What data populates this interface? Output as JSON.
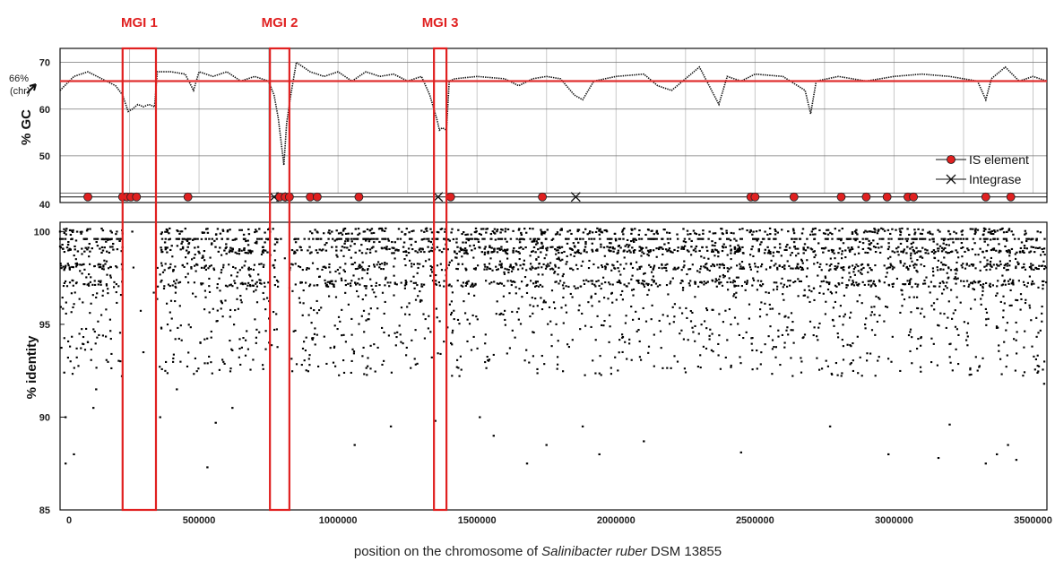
{
  "chart_data": [
    {
      "type": "line",
      "panel": "gc",
      "ylabel": "% GC",
      "ylim": [
        40,
        73
      ],
      "yticks": [
        "70",
        "60",
        "50",
        "40"
      ],
      "reference_line": {
        "value": 66,
        "label": "66%",
        "sublabel": "(chr)",
        "color": "#e03030"
      },
      "xlim": [
        0,
        3550000
      ],
      "grid": true,
      "series": [
        {
          "type": "line",
          "color": "#111111",
          "x": [
            0,
            50000,
            100000,
            150000,
            200000,
            225000,
            245000,
            260000,
            280000,
            300000,
            320000,
            340000,
            350000,
            400000,
            450000,
            480000,
            500000,
            550000,
            600000,
            650000,
            700000,
            750000,
            770000,
            785000,
            795000,
            805000,
            815000,
            830000,
            850000,
            900000,
            950000,
            1000000,
            1050000,
            1100000,
            1150000,
            1200000,
            1250000,
            1300000,
            1330000,
            1355000,
            1365000,
            1375000,
            1390000,
            1400000,
            1420000,
            1500000,
            1600000,
            1650000,
            1700000,
            1750000,
            1800000,
            1850000,
            1880000,
            1920000,
            2000000,
            2100000,
            2150000,
            2200000,
            2300000,
            2370000,
            2400000,
            2450000,
            2500000,
            2600000,
            2680000,
            2700000,
            2720000,
            2800000,
            2900000,
            3000000,
            3100000,
            3200000,
            3300000,
            3330000,
            3350000,
            3400000,
            3450000,
            3500000,
            3550000
          ],
          "y": [
            64,
            67,
            68,
            66.5,
            65,
            63,
            59.5,
            60,
            61,
            60.5,
            61,
            60.5,
            68,
            68,
            67.5,
            64,
            68,
            67,
            68,
            66,
            67,
            66,
            63,
            58,
            53,
            48,
            57,
            63,
            70,
            68,
            67,
            68,
            66,
            68,
            67,
            67.5,
            66,
            67,
            63,
            58,
            55.5,
            56,
            55.5,
            66,
            66.5,
            67,
            66.5,
            65,
            66.5,
            67,
            66.5,
            63,
            62,
            66,
            67,
            67.5,
            65,
            64,
            69,
            61,
            67,
            66,
            67.5,
            67,
            64,
            59,
            66,
            67,
            66,
            67,
            67.5,
            67,
            66,
            62,
            66.5,
            69,
            66,
            67,
            66
          ]
        }
      ],
      "markers": {
        "is_element": [
          100000,
          225000,
          240000,
          255000,
          275000,
          460000,
          790000,
          810000,
          825000,
          900000,
          925000,
          1075000,
          1405000,
          1735000,
          2485000,
          2500000,
          2640000,
          2810000,
          2900000,
          2975000,
          3050000,
          3070000,
          3330000,
          3420000
        ],
        "integrase": [
          770000,
          795000,
          1360000,
          1855000
        ]
      },
      "legend": {
        "placement": "right",
        "entries": [
          "IS element",
          "Integrase"
        ]
      }
    },
    {
      "type": "scatter",
      "panel": "identity",
      "ylabel": "% identity",
      "ylim": [
        85,
        100.5
      ],
      "yticks": [
        "100",
        "95",
        "90",
        "85"
      ],
      "xlim": [
        0,
        3550000
      ],
      "xticks": [
        "0",
        "500000",
        "1000000",
        "1500000",
        "2000000",
        "2500000",
        "3000000",
        "3500000"
      ],
      "xlabel_parts": [
        "position on the chromosome of ",
        "Salinibacter ruber",
        " DSM 13855"
      ],
      "series": [
        {
          "name": "",
          "color": "#000000",
          "note": "dense points mainly between 92 and 100 % identity; bands at 100, 99, 98, 97; gaps at MGI 1 and MGI 2"
        }
      ],
      "sample_points": [
        [
          0,
          100
        ],
        [
          15000,
          92.4
        ],
        [
          20000,
          90
        ],
        [
          20000,
          87.5
        ],
        [
          50000,
          88
        ],
        [
          120000,
          90.5
        ],
        [
          130000,
          91.5
        ],
        [
          260000,
          100
        ],
        [
          300000,
          93.5
        ],
        [
          360000,
          90
        ],
        [
          420000,
          91.5
        ],
        [
          530000,
          87.3
        ],
        [
          560000,
          89.7
        ],
        [
          620000,
          90.5
        ],
        [
          1060000,
          88.5
        ],
        [
          1190000,
          89.5
        ],
        [
          1350000,
          89.8
        ],
        [
          1510000,
          90
        ],
        [
          1560000,
          89
        ],
        [
          1680000,
          87.5
        ],
        [
          1750000,
          88.5
        ],
        [
          1880000,
          89.5
        ],
        [
          1940000,
          88
        ],
        [
          2100000,
          88.7
        ],
        [
          2450000,
          88.1
        ],
        [
          2770000,
          89.5
        ],
        [
          2980000,
          88
        ],
        [
          3160000,
          87.8
        ],
        [
          3200000,
          89.6
        ],
        [
          3330000,
          87.5
        ],
        [
          3370000,
          88
        ],
        [
          3410000,
          88.5
        ],
        [
          3440000,
          87.7
        ],
        [
          3540000,
          91.8
        ]
      ]
    }
  ],
  "regions": [
    {
      "label": "MGI 1",
      "start": 225000,
      "end": 345000
    },
    {
      "label": "MGI 2",
      "start": 755000,
      "end": 825000
    },
    {
      "label": "MGI 3",
      "start": 1345000,
      "end": 1390000
    }
  ],
  "colors": {
    "highlight": "#e02020",
    "points": "#000000"
  }
}
